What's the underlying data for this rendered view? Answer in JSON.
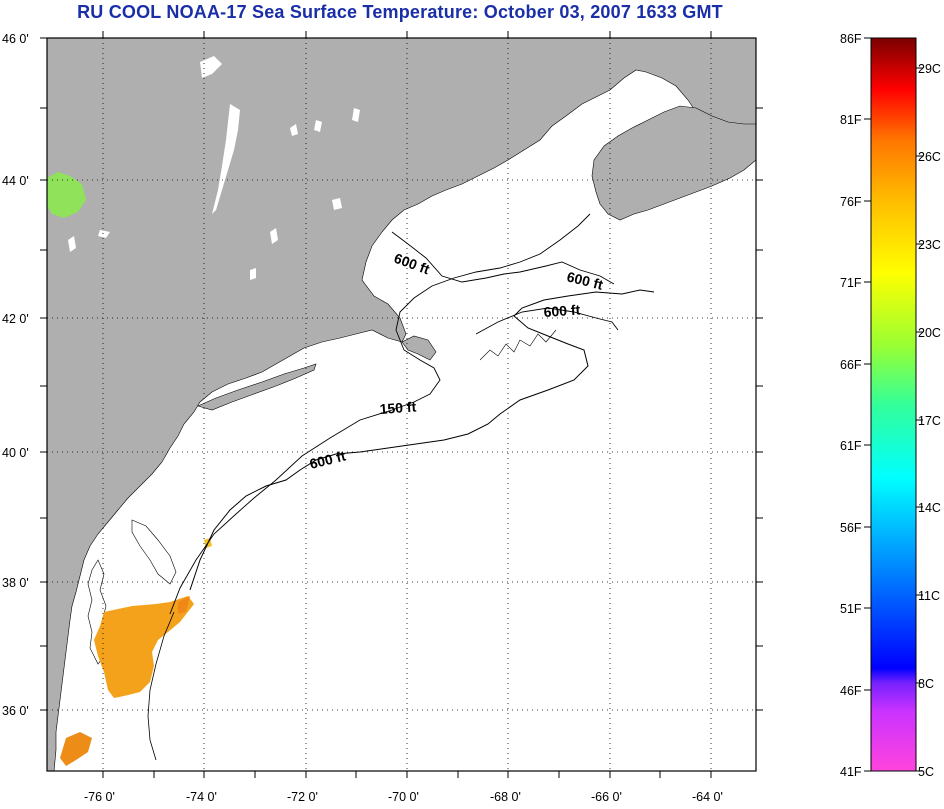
{
  "title": "RU COOL  NOAA-17  Sea Surface Temperature:  October 03, 2007 1633 GMT",
  "lat_labels": [
    "46 0'",
    "44 0'",
    "42 0'",
    "40 0'",
    "38 0'",
    "36 0'"
  ],
  "lon_labels": [
    "-76 0'",
    "-74 0'",
    "-72 0'",
    "-70 0'",
    "-68 0'",
    "-66 0'",
    "-64 0'"
  ],
  "isobaths": [
    {
      "label": "600 ft",
      "depth_ft": 600
    },
    {
      "label": "600 ft",
      "depth_ft": 600
    },
    {
      "label": "600 ft",
      "depth_ft": 600
    },
    {
      "label": "150 ft",
      "depth_ft": 150
    },
    {
      "label": "600 ft",
      "depth_ft": 600
    }
  ],
  "colorbar": {
    "f_labels": [
      "86F",
      "81F",
      "76F",
      "71F",
      "66F",
      "61F",
      "56F",
      "51F",
      "46F",
      "41F"
    ],
    "c_labels": [
      "29C",
      "26C",
      "23C",
      "20C",
      "17C",
      "14C",
      "11C",
      "8C",
      "5C"
    ],
    "range_f": [
      41,
      86
    ],
    "range_c": [
      5,
      30
    ],
    "colors": [
      "#ff33cc",
      "#cc33ff",
      "#0000ff",
      "#0077ff",
      "#00ffff",
      "#33ff99",
      "#99ff33",
      "#ffff00",
      "#ffbb00",
      "#ff7700",
      "#ff0000",
      "#7a0000"
    ]
  },
  "map": {
    "lat_range": [
      35,
      46
    ],
    "lon_range": [
      -77,
      -63
    ],
    "colors": {
      "land": "#afafaf",
      "water": "#ffffff",
      "warm_sst": "#f4a21c",
      "cool_sst": "#8fe25a"
    }
  }
}
